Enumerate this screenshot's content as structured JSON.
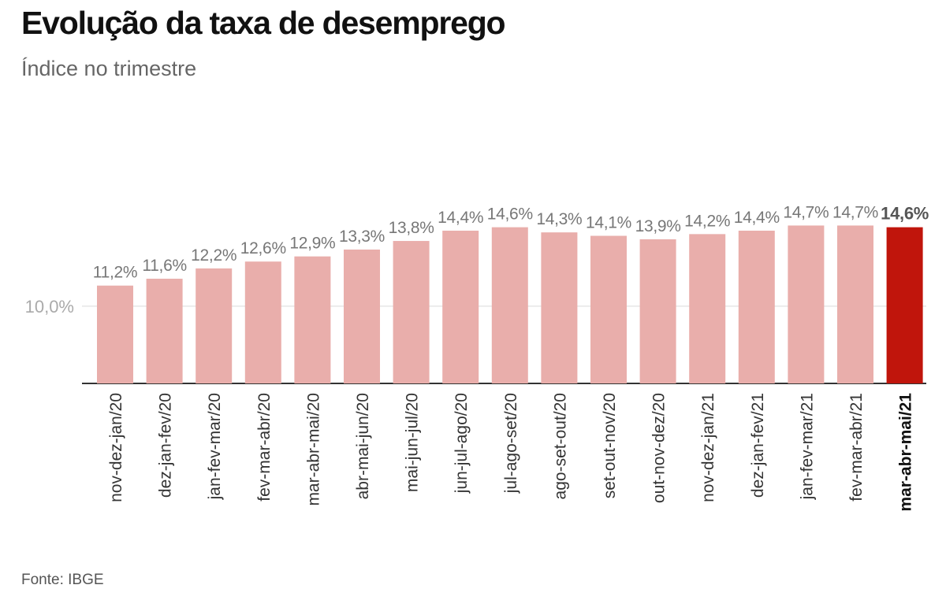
{
  "header": {
    "title": "Evolução da taxa de desemprego",
    "subtitle": "Índice no trimestre"
  },
  "footer": {
    "source": "Fonte: IBGE"
  },
  "colors": {
    "bar": "#e9aeab",
    "highlight": "#c0150c",
    "label": "#777777",
    "highlight_label": "#555555",
    "axis": "#333333",
    "grid": "#e6e6e6",
    "y_tick": "#aaaaaa"
  },
  "chart_data": {
    "type": "bar",
    "title": "Evolução da taxa de desemprego",
    "subtitle": "Índice no trimestre",
    "xlabel": "",
    "ylabel": "",
    "categories": [
      "nov-dez-jan/20",
      "dez-jan-fev/20",
      "jan-fev-mar/20",
      "fev-mar-abr/20",
      "mar-abr-mai/20",
      "abr-mai-jun/20",
      "mai-jun-jul/20",
      "jun-jul-ago/20",
      "jul-ago-set/20",
      "ago-set-out/20",
      "set-out-nov/20",
      "out-nov-dez/20",
      "nov-dez-jan/21",
      "dez-jan-fev/21",
      "jan-fev-mar/21",
      "fev-mar-abr/21",
      "mar-abr-mai/21"
    ],
    "values": [
      11.2,
      11.6,
      12.2,
      12.6,
      12.9,
      13.3,
      13.8,
      14.4,
      14.6,
      14.3,
      14.1,
      13.9,
      14.2,
      14.4,
      14.7,
      14.7,
      14.6
    ],
    "value_labels": [
      "11,2%",
      "11,6%",
      "12,2%",
      "12,6%",
      "12,9%",
      "13,3%",
      "13,8%",
      "14,4%",
      "14,6%",
      "14,3%",
      "14,1%",
      "13,9%",
      "14,2%",
      "14,4%",
      "14,7%",
      "14,7%",
      "14,6%"
    ],
    "highlight_index": 16,
    "y_ticks": [
      10.0
    ],
    "y_tick_labels": [
      "10,0%"
    ],
    "ylim": [
      5.5,
      15.2
    ],
    "grid": true,
    "legend": "none"
  }
}
